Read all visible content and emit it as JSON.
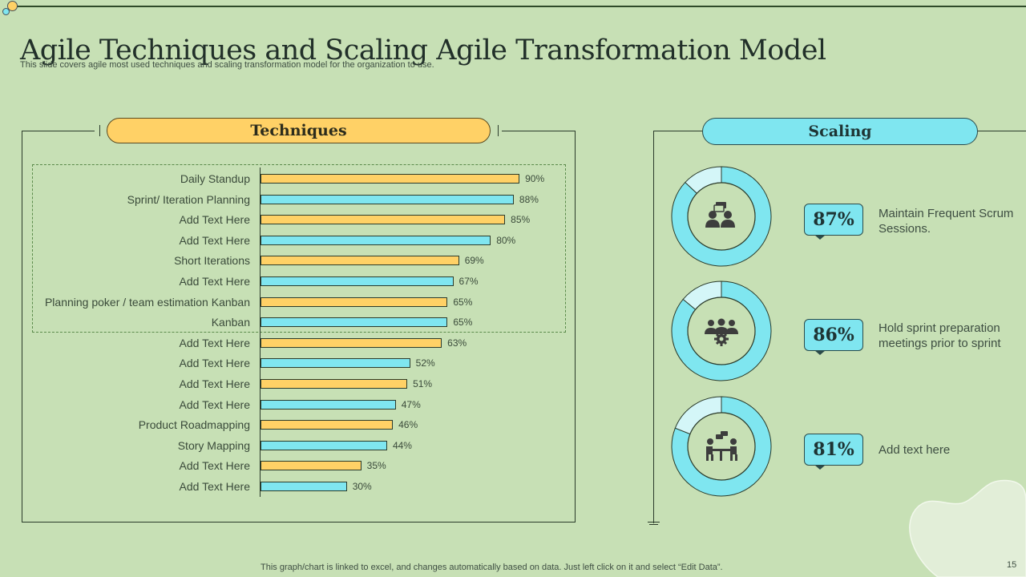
{
  "slide": {
    "title": "Agile Techniques and Scaling Agile Transformation Model",
    "subtitle": "This slide covers agile most used techniques and scaling transformation model for the organization to use.",
    "footer_note": "This graph/chart is linked to excel,  and changes automatically based on data. Just left click on it and select “Edit Data”.",
    "page_number": "15"
  },
  "colors": {
    "background": "#c7e0b5",
    "yellow": "#ffd166",
    "cyan": "#7fe6f0",
    "cyan_light": "#d4f6f8",
    "dark": "#2b3b2b"
  },
  "techniques": {
    "header": "Techniques"
  },
  "chart_data": {
    "type": "bar",
    "orientation": "horizontal",
    "title": "Techniques",
    "xlabel": "",
    "ylabel": "",
    "xlim": [
      0,
      100
    ],
    "unit": "%",
    "categories": [
      "Daily Standup",
      "Sprint/ Iteration Planning",
      "Add Text Here",
      "Add Text Here",
      "Short Iterations",
      "Add Text Here",
      "Planning poker / team estimation Kanban",
      "Kanban",
      "Add Text Here",
      "Add Text Here",
      "Add Text Here",
      "Add Text Here",
      "Product Roadmapping",
      "Story Mapping",
      "Add Text Here",
      "Add Text Here"
    ],
    "values": [
      90,
      88,
      85,
      80,
      69,
      67,
      65,
      65,
      63,
      52,
      51,
      47,
      46,
      44,
      35,
      30
    ],
    "bar_colors": [
      "yellow",
      "cyan",
      "yellow",
      "cyan",
      "yellow",
      "cyan",
      "yellow",
      "cyan",
      "yellow",
      "cyan",
      "yellow",
      "cyan",
      "yellow",
      "cyan",
      "yellow",
      "cyan"
    ],
    "highlighted_range": [
      0,
      7
    ],
    "grid": false,
    "legend": "none"
  },
  "scaling": {
    "header": "Scaling",
    "items": [
      {
        "percent": 87,
        "label": "87%",
        "description": "Maintain Frequent Scrum Sessions.",
        "icon": "team-chat-icon"
      },
      {
        "percent": 86,
        "label": "86%",
        "description": "Hold sprint preparation meetings prior to sprint",
        "icon": "team-gear-icon"
      },
      {
        "percent": 81,
        "label": "81%",
        "description": "Add text here",
        "icon": "meeting-table-icon"
      }
    ]
  }
}
